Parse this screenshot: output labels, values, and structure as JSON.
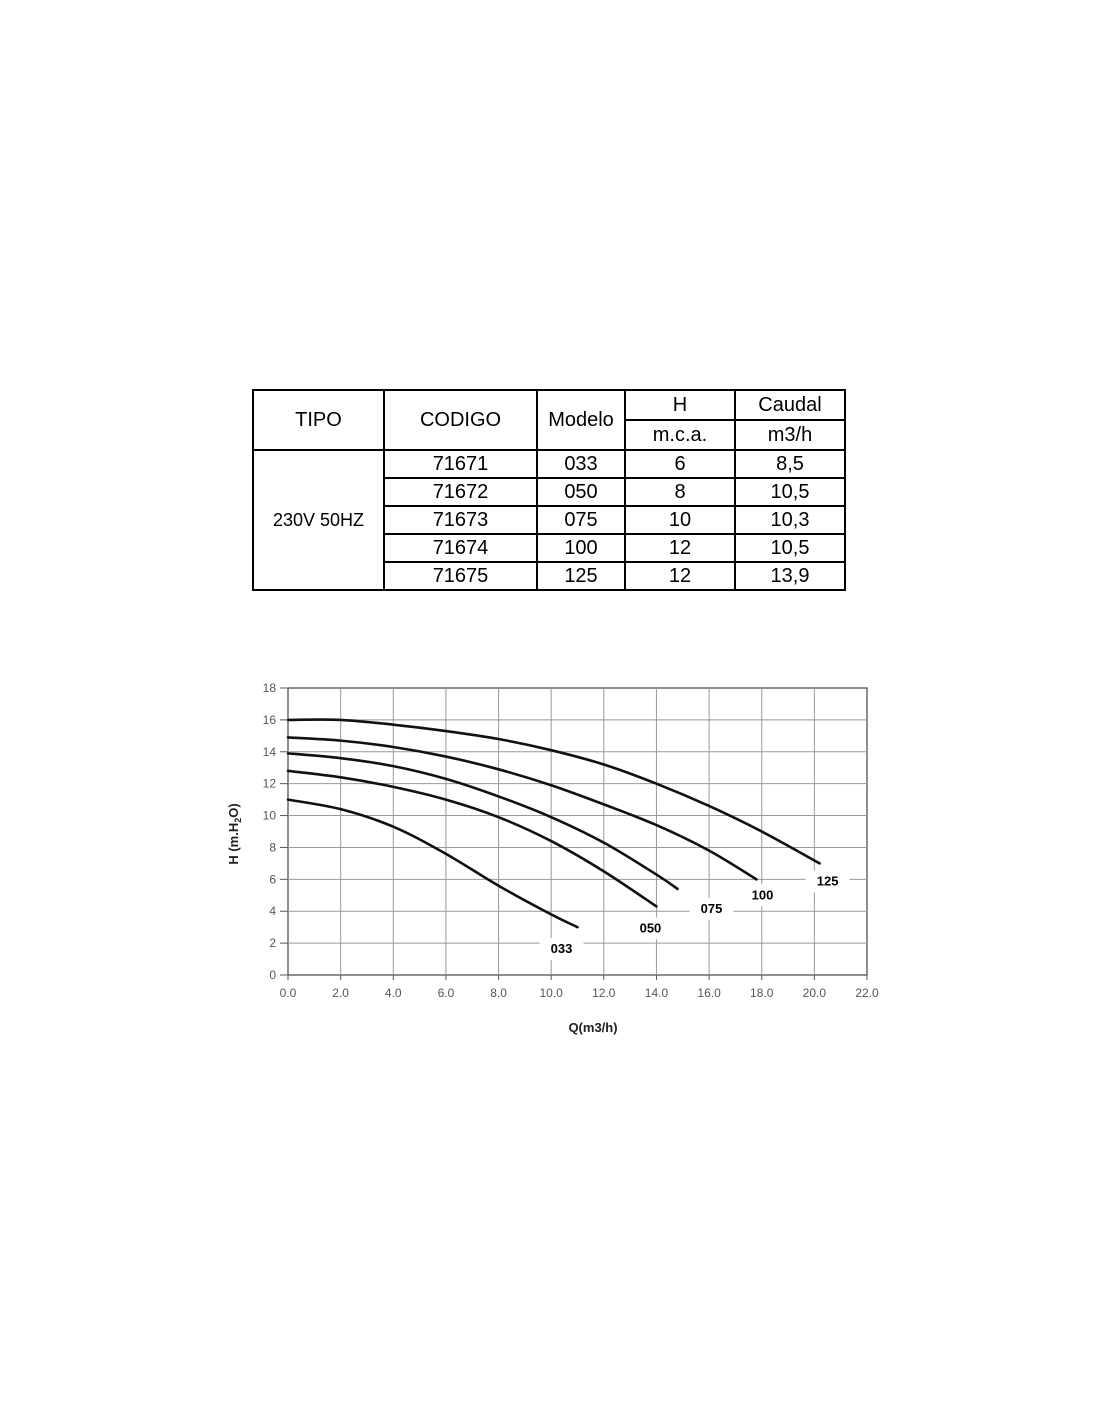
{
  "table": {
    "headers": {
      "tipo": "TIPO",
      "codigo": "CODIGO",
      "modelo": "Modelo",
      "h": "H",
      "h_unit": "m.c.a.",
      "caudal": "Caudal",
      "caudal_unit": "m3/h"
    },
    "tipo_value": "230V 50HZ",
    "rows": [
      {
        "codigo": "71671",
        "modelo": "033",
        "h": "6",
        "caudal": "8,5"
      },
      {
        "codigo": "71672",
        "modelo": "050",
        "h": "8",
        "caudal": "10,5"
      },
      {
        "codigo": "71673",
        "modelo": "075",
        "h": "10",
        "caudal": "10,3"
      },
      {
        "codigo": "71674",
        "modelo": "100",
        "h": "12",
        "caudal": "10,5"
      },
      {
        "codigo": "71675",
        "modelo": "125",
        "h": "12",
        "caudal": "13,9"
      }
    ]
  },
  "chart_data": {
    "type": "line",
    "title": "",
    "xlabel": "Q(m3/h)",
    "ylabel": "H (m.H2O)",
    "xlim": [
      0,
      22
    ],
    "ylim": [
      0,
      18
    ],
    "xticks": [
      "0.0",
      "2.0",
      "4.0",
      "6.0",
      "8.0",
      "10.0",
      "12.0",
      "14.0",
      "16.0",
      "18.0",
      "20.0",
      "22.0"
    ],
    "yticks": [
      "0",
      "2",
      "4",
      "6",
      "8",
      "10",
      "12",
      "14",
      "16",
      "18"
    ],
    "grid": true,
    "series": [
      {
        "name": "033",
        "x": [
          0,
          2,
          4,
          6,
          8,
          10,
          11
        ],
        "y": [
          11,
          10.4,
          9.3,
          7.6,
          5.6,
          3.8,
          3.0
        ]
      },
      {
        "name": "050",
        "x": [
          0,
          2,
          4,
          6,
          8,
          10,
          12,
          14
        ],
        "y": [
          12.8,
          12.4,
          11.8,
          11.0,
          9.9,
          8.4,
          6.5,
          4.3
        ]
      },
      {
        "name": "075",
        "x": [
          0,
          2,
          4,
          6,
          8,
          10,
          12,
          14,
          14.8
        ],
        "y": [
          13.9,
          13.6,
          13.1,
          12.3,
          11.2,
          9.9,
          8.3,
          6.3,
          5.4
        ]
      },
      {
        "name": "100",
        "x": [
          0,
          2,
          4,
          6,
          8,
          10,
          12,
          14,
          16,
          17.8
        ],
        "y": [
          14.9,
          14.7,
          14.3,
          13.7,
          12.9,
          11.9,
          10.7,
          9.4,
          7.8,
          6.0
        ]
      },
      {
        "name": "125",
        "x": [
          0,
          2,
          4,
          6,
          8,
          10,
          12,
          14,
          16,
          18,
          20.2
        ],
        "y": [
          16.0,
          16.0,
          15.7,
          15.3,
          14.8,
          14.1,
          13.2,
          12.0,
          10.6,
          9.0,
          7.0
        ]
      }
    ]
  }
}
